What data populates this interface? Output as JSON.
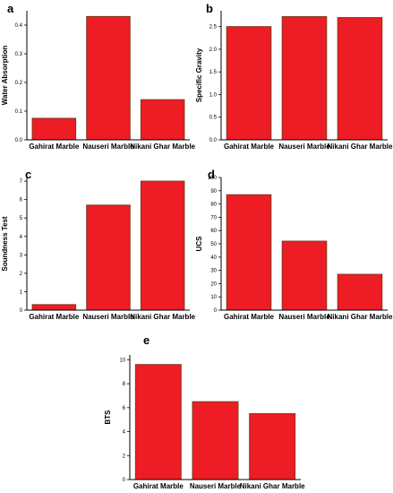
{
  "colors": {
    "bar_fill": "#ee1c25",
    "bar_stroke": "#7f3a1e",
    "axis": "#000000"
  },
  "chart_data": [
    {
      "panel": "a",
      "type": "bar",
      "categories": [
        "Gahirat Marble",
        "Nauseri Marble",
        "Nikani Ghar Marble"
      ],
      "values": [
        0.075,
        0.43,
        0.14
      ],
      "ylabel": "Water Absorption",
      "ylim": [
        0,
        0.45
      ],
      "yticks": [
        0.0,
        0.1,
        0.2,
        0.3,
        0.4
      ],
      "ytick_labels": [
        "0.0",
        "0.1",
        "0.2",
        "0.3",
        "0.4"
      ],
      "grid": false
    },
    {
      "panel": "b",
      "type": "bar",
      "categories": [
        "Gahirat Marble",
        "Nauseri Marble",
        "Nikani Ghar Marble"
      ],
      "values": [
        2.5,
        2.72,
        2.7
      ],
      "ylabel": "Specific Gravity",
      "ylim": [
        0,
        2.85
      ],
      "yticks": [
        0.0,
        0.5,
        1.0,
        1.5,
        2.0,
        2.5
      ],
      "ytick_labels": [
        "0.0",
        "0.5",
        "1.0",
        "1.5",
        "2.0",
        "2.5"
      ],
      "grid": false
    },
    {
      "panel": "c",
      "type": "bar",
      "categories": [
        "Gahirat Marble",
        "Nauseri Marble",
        "Nikani Ghar Marble"
      ],
      "values": [
        0.3,
        5.7,
        7.0
      ],
      "ylabel": "Soundness Test",
      "ylim": [
        0,
        7.2
      ],
      "yticks": [
        0,
        1,
        2,
        3,
        4,
        5,
        6,
        7
      ],
      "ytick_labels": [
        "0",
        "1",
        "2",
        "3",
        "4",
        "5",
        "6",
        "7"
      ],
      "grid": false
    },
    {
      "panel": "d",
      "type": "bar",
      "categories": [
        "Gahirat Marble",
        "Nauseri Marble",
        "Nikani Ghar Marble"
      ],
      "values": [
        87,
        52,
        27
      ],
      "ylabel": "UCS",
      "ylim": [
        0,
        100
      ],
      "yticks": [
        0,
        10,
        20,
        30,
        40,
        50,
        60,
        70,
        80,
        90,
        100
      ],
      "ytick_labels": [
        "0",
        "10",
        "20",
        "30",
        "40",
        "50",
        "60",
        "70",
        "80",
        "90",
        "100"
      ],
      "grid": false
    },
    {
      "panel": "e",
      "type": "bar",
      "categories": [
        "Gahirat Marble",
        "Nauseri Marble",
        "Nikani Ghar Marble"
      ],
      "values": [
        9.6,
        6.5,
        5.5
      ],
      "ylabel": "BTS",
      "ylim": [
        0,
        10.4
      ],
      "yticks": [
        0,
        2,
        4,
        6,
        8,
        10
      ],
      "ytick_labels": [
        "0",
        "2",
        "4",
        "6",
        "8",
        "10"
      ],
      "grid": false
    }
  ]
}
